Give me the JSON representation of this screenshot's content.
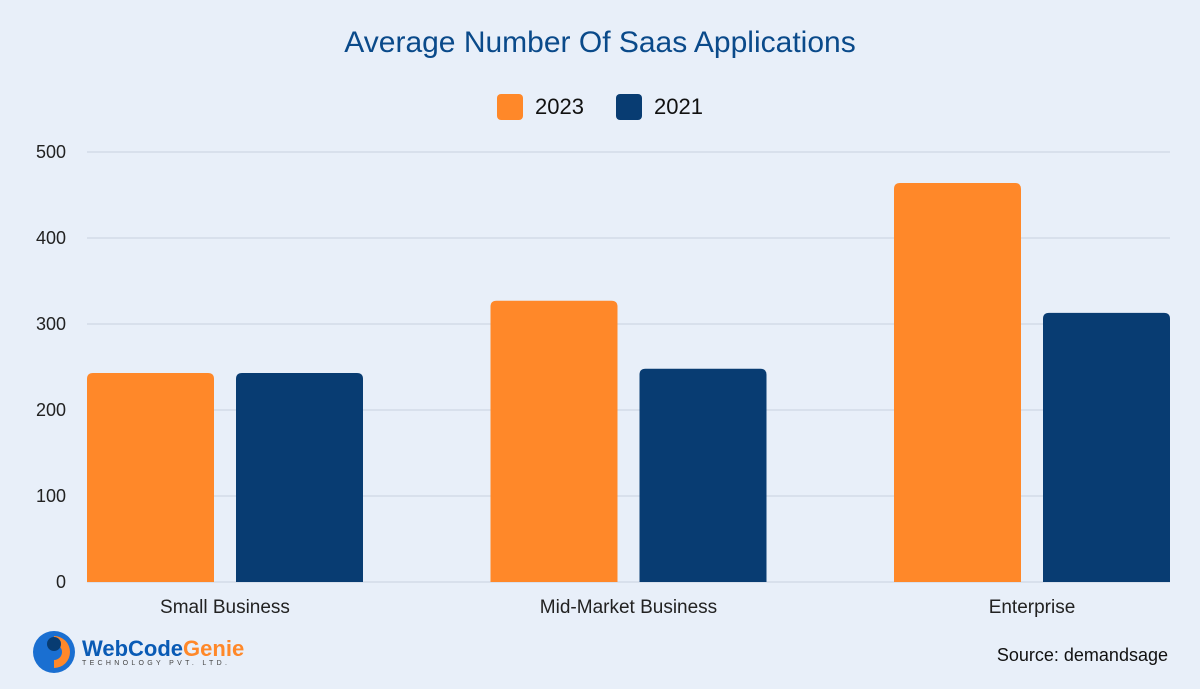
{
  "chart_data": {
    "type": "bar",
    "title": "Average Number Of Saas Applications",
    "categories": [
      "Small Business",
      "Mid-Market Business",
      "Enterprise"
    ],
    "series": [
      {
        "name": "2023",
        "color": "#ff8829",
        "values": [
          243,
          327,
          464
        ]
      },
      {
        "name": "2021",
        "color": "#083c72",
        "values": [
          243,
          248,
          313
        ]
      }
    ],
    "ylim": [
      0,
      500
    ],
    "yticks": [
      "0",
      "100",
      "200",
      "300",
      "400",
      "500"
    ],
    "grid": true,
    "legend": "top-center",
    "xlabel": "",
    "ylabel": ""
  },
  "source": {
    "label": "Source:",
    "value": "demandsage"
  },
  "logo": {
    "name_a": "WebCode",
    "name_b": "Genie",
    "tagline": "TECHNOLOGY PVT. LTD."
  }
}
